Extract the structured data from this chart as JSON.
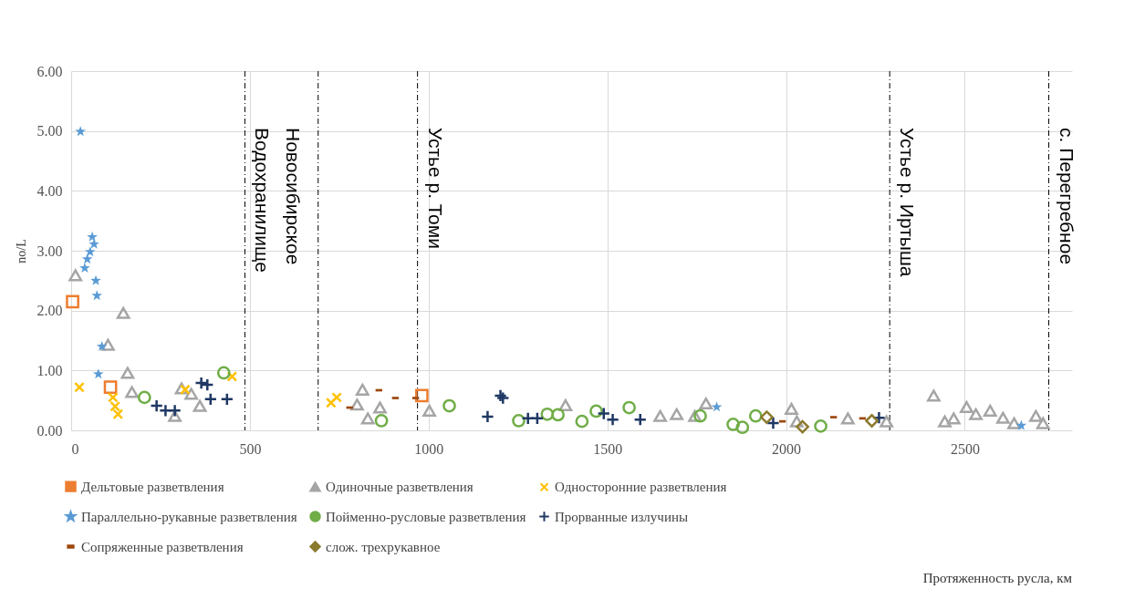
{
  "chart_data": {
    "type": "scatter",
    "annotations": [
      "Протяженность русла, км"
    ],
    "ylabel": "no/L",
    "xlim": [
      0,
      2800
    ],
    "xticks": [
      0,
      500,
      1000,
      1500,
      2000,
      2500
    ],
    "ylim": [
      0,
      6
    ],
    "yticks": [
      {
        "value": 0,
        "label": "0.00"
      },
      {
        "value": 1,
        "label": "1.00"
      },
      {
        "value": 2,
        "label": "2.00"
      },
      {
        "value": 3,
        "label": "3.00"
      },
      {
        "value": 4,
        "label": "4.00"
      },
      {
        "value": 5,
        "label": "5.00"
      },
      {
        "value": 6,
        "label": "6.00"
      }
    ],
    "grid": true,
    "legend": "bottom",
    "ref_lines": [
      {
        "axis": "x",
        "value": 486,
        "label": "Новосибирское\nВодохранилище",
        "line_style": "dashed"
      },
      {
        "axis": "x",
        "value": 691,
        "line_style": "dashed"
      },
      {
        "axis": "x",
        "value": 969,
        "label": "Устье р. Томи",
        "line_style": "dashed"
      },
      {
        "axis": "x",
        "value": 2290,
        "label": "Устье р. Иртыша",
        "line_style": "dashed"
      },
      {
        "axis": "x",
        "value": 2735,
        "label": "с. Перегребное",
        "line_style": "dashed"
      }
    ],
    "series": [
      {
        "name": "Дельтовые разветвления",
        "color": "#ed7d31",
        "marker": "square",
        "x": [
          4,
          110,
          981
        ],
        "values": [
          2.15,
          0.72,
          0.58
        ]
      },
      {
        "name": "Одиночные разветвления",
        "color": "#a5a5a5",
        "marker": "triangle",
        "x": [
          12,
          146,
          103,
          158,
          170,
          290,
          309,
          336,
          360,
          815,
          800,
          830,
          864,
          1002,
          1383,
          1648,
          1694,
          1745,
          1776,
          2015,
          2030,
          2173,
          2281,
          2413,
          2444,
          2469,
          2505,
          2531,
          2571,
          2607,
          2638,
          2699,
          2719
        ],
        "values": [
          2.59,
          1.96,
          1.43,
          0.96,
          0.64,
          0.24,
          0.7,
          0.61,
          0.41,
          0.68,
          0.43,
          0.2,
          0.38,
          0.33,
          0.42,
          0.24,
          0.27,
          0.24,
          0.45,
          0.36,
          0.15,
          0.2,
          0.15,
          0.58,
          0.15,
          0.2,
          0.39,
          0.27,
          0.33,
          0.21,
          0.12,
          0.24,
          0.12
        ]
      },
      {
        "name": "Односторонние разветвления",
        "color": "#ffc000",
        "marker": "cross",
        "x": [
          23,
          117,
          123,
          131,
          319,
          450,
          727,
          743
        ],
        "values": [
          0.72,
          0.55,
          0.4,
          0.27,
          0.68,
          0.9,
          0.46,
          0.55
        ]
      },
      {
        "name": "Параллельно-рукавные разветвления",
        "color": "#5b9bd5",
        "marker": "star",
        "x": [
          26,
          59,
          64,
          53,
          45,
          38,
          69,
          72,
          86,
          76,
          1806,
          2658
        ],
        "values": [
          4.99,
          3.23,
          3.11,
          2.98,
          2.86,
          2.71,
          2.5,
          2.25,
          1.4,
          0.94,
          0.39,
          0.08
        ]
      },
      {
        "name": "Пойменно-русловые разветвления",
        "color": "#70ad47",
        "marker": "circle",
        "x": [
          205,
          427,
          868,
          1058,
          1252,
          1332,
          1362,
          1429,
          1469,
          1561,
          1760,
          1852,
          1878,
          1915,
          2097
        ],
        "values": [
          0.55,
          0.96,
          0.16,
          0.41,
          0.16,
          0.27,
          0.26,
          0.15,
          0.32,
          0.38,
          0.24,
          0.1,
          0.05,
          0.24,
          0.07
        ]
      },
      {
        "name": "Прорванные излучины",
        "color": "#1f3864",
        "marker": "plus",
        "x": [
          239,
          264,
          290,
          364,
          381,
          390,
          436,
          1165,
          1201,
          1208,
          1278,
          1304,
          1490,
          1515,
          1592,
          1964,
          2260
        ],
        "values": [
          0.41,
          0.33,
          0.33,
          0.79,
          0.76,
          0.52,
          0.52,
          0.23,
          0.58,
          0.54,
          0.2,
          0.2,
          0.28,
          0.18,
          0.18,
          0.12,
          0.21
        ]
      },
      {
        "name": "Сопряженные разветвления",
        "color": "#9e480e",
        "x": [
          779,
          861,
          907,
          964,
          1990,
          2133,
          2214
        ],
        "values": [
          0.38,
          0.67,
          0.54,
          0.54,
          0.15,
          0.22,
          0.2
        ]
      },
      {
        "name": "слож. трехрукавное",
        "color": "#8c7a2e",
        "marker": "diamond",
        "x": [
          1946,
          2046,
          2240
        ],
        "values": [
          0.22,
          0.06,
          0.16
        ]
      }
    ]
  }
}
